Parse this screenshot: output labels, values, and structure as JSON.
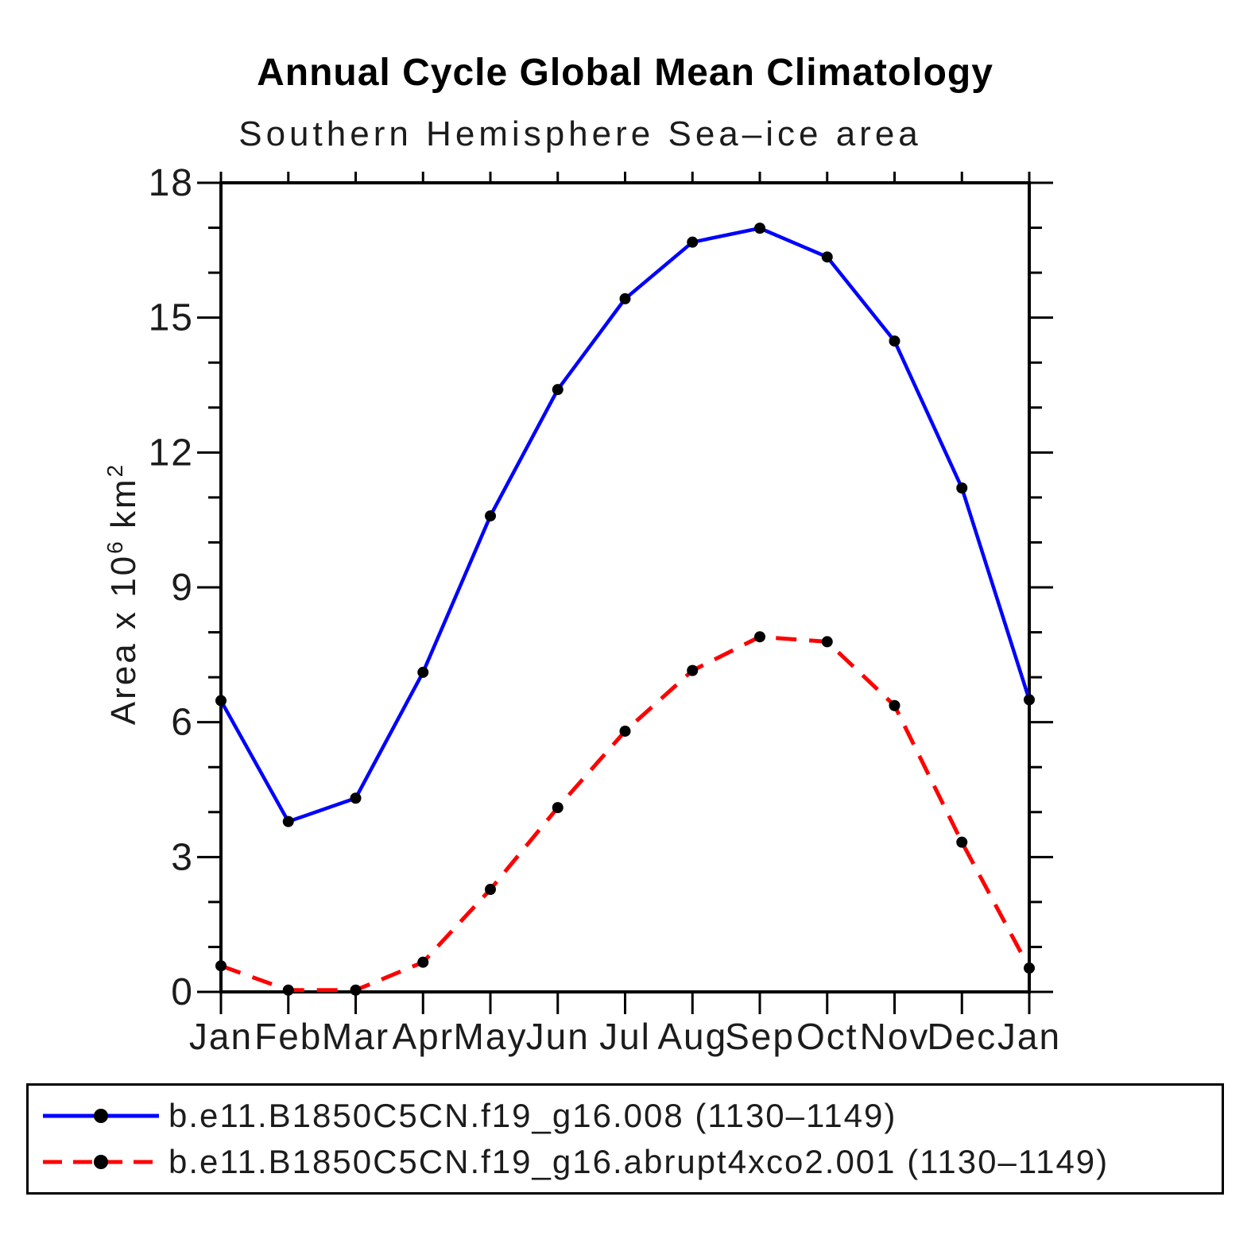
{
  "title": "Annual Cycle Global Mean Climatology",
  "subtitle": "Southern Hemisphere Sea–ice area",
  "ylabel_parts": {
    "base1": "Area x 10",
    "sup1": "6",
    "base2": " km",
    "sup2": "2"
  },
  "chart_data": {
    "type": "line",
    "title": "Annual Cycle Global Mean Climatology",
    "subtitle": "Southern Hemisphere Sea–ice area",
    "xlabel": "",
    "ylabel": "Area x 10^6 km^2",
    "x": [
      "Jan",
      "Feb",
      "Mar",
      "Apr",
      "May",
      "Jun",
      "Jul",
      "Aug",
      "Sep",
      "Oct",
      "Nov",
      "Dec",
      "Jan"
    ],
    "ylim": [
      0,
      18
    ],
    "yticks_major": [
      0,
      3,
      6,
      9,
      12,
      15,
      18
    ],
    "ytick_minor_step": 1,
    "grid": false,
    "legend_position": "bottom",
    "axis_color": "#000000",
    "marker_color": "#000000",
    "series": [
      {
        "name": "b.e11.B1850C5CN.f19_g16.008 (1130–1149)",
        "color": "#0000FF",
        "line_style": "solid",
        "marker": "filled-circle",
        "values": [
          6.48,
          3.79,
          4.31,
          7.11,
          10.59,
          13.4,
          15.42,
          16.68,
          16.99,
          16.35,
          14.48,
          11.21,
          6.5
        ]
      },
      {
        "name": "b.e11.B1850C5CN.f19_g16.abrupt4xco2.001 (1130–1149)",
        "color": "#FF0000",
        "line_style": "dashed",
        "marker": "filled-circle",
        "values": [
          0.58,
          0.04,
          0.04,
          0.66,
          2.28,
          4.1,
          5.8,
          7.15,
          7.9,
          7.79,
          6.37,
          3.33,
          0.53
        ]
      }
    ]
  },
  "legend": {
    "entries": [
      {
        "label": "b.e11.B1850C5CN.f19_g16.008 (1130–1149)"
      },
      {
        "label": "b.e11.B1850C5CN.f19_g16.abrupt4xco2.001 (1130–1149)"
      }
    ]
  }
}
